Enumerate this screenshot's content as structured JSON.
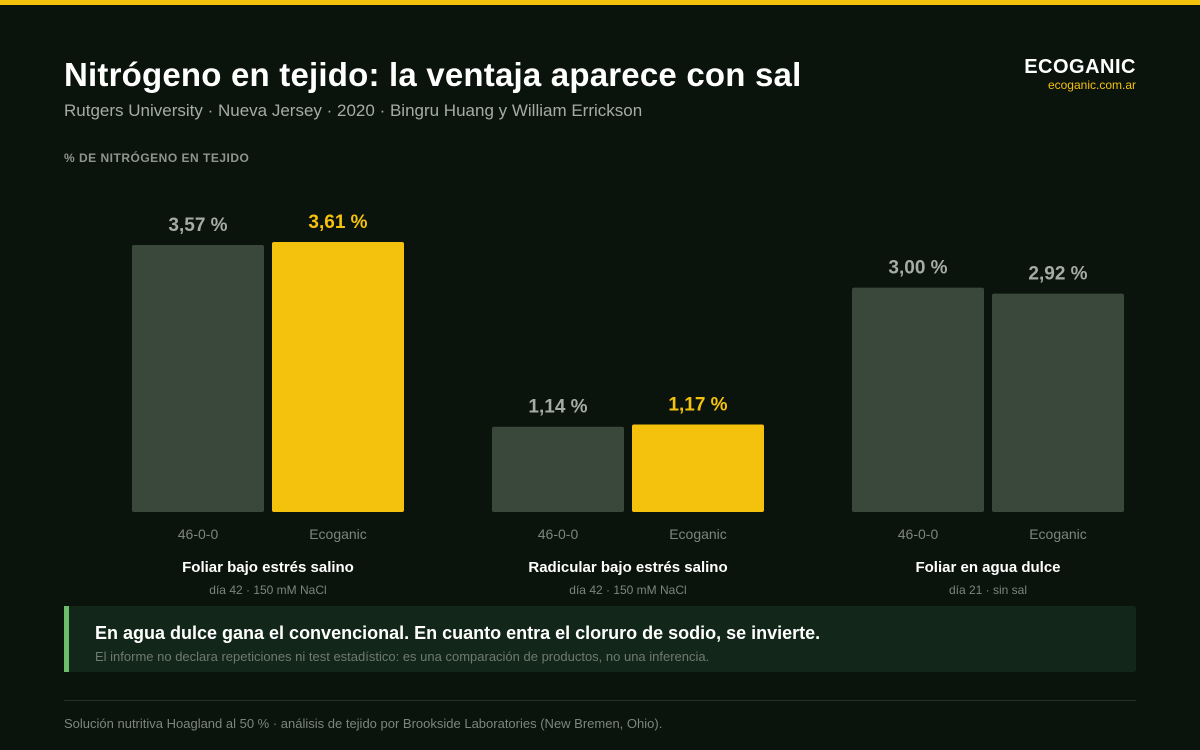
{
  "header": {
    "title": "Nitrógeno en tejido: la ventaja aparece con sal",
    "subtitle": "Rutgers University · Nueva Jersey · 2020 · Bingru Huang y William Errickson"
  },
  "brand": {
    "name": "ECOGANIC",
    "url": "ecoganic.com.ar"
  },
  "colors": {
    "accent": "#f4c20d",
    "bar_default": "#3a473b",
    "label_default": "#a4aca5",
    "background": "#0a130c",
    "callout_border": "#6dbb6d"
  },
  "chart_data": {
    "type": "bar",
    "ylabel": "% DE NITRÓGENO EN TEJIDO",
    "ylim": [
      0,
      3.61
    ],
    "groups": [
      {
        "name": "Foliar bajo estrés salino",
        "detail": "día 42 · 150 mM NaCl",
        "bars": [
          {
            "label": "46-0-0",
            "value": 3.57,
            "value_label": "3,57 %",
            "highlight": false
          },
          {
            "label": "Ecoganic",
            "value": 3.61,
            "value_label": "3,61 %",
            "highlight": true
          }
        ]
      },
      {
        "name": "Radicular bajo estrés salino",
        "detail": "día 42 · 150 mM NaCl",
        "bars": [
          {
            "label": "46-0-0",
            "value": 1.14,
            "value_label": "1,14 %",
            "highlight": false
          },
          {
            "label": "Ecoganic",
            "value": 1.17,
            "value_label": "1,17 %",
            "highlight": true
          }
        ]
      },
      {
        "name": "Foliar en agua dulce",
        "detail": "día 21 · sin sal",
        "bars": [
          {
            "label": "46-0-0",
            "value": 3.0,
            "value_label": "3,00 %",
            "highlight": false
          },
          {
            "label": "Ecoganic",
            "value": 2.92,
            "value_label": "2,92 %",
            "highlight": false
          }
        ]
      }
    ]
  },
  "callout": {
    "title": "En agua dulce gana el convencional. En cuanto entra el cloruro de sodio, se invierte.",
    "note": "El informe no declara repeticiones ni test estadístico: es una comparación de productos, no una inferencia."
  },
  "footer": {
    "text": "Solución nutritiva Hoagland al 50 % · análisis de tejido por Brookside Laboratories (New Bremen, Ohio)."
  }
}
